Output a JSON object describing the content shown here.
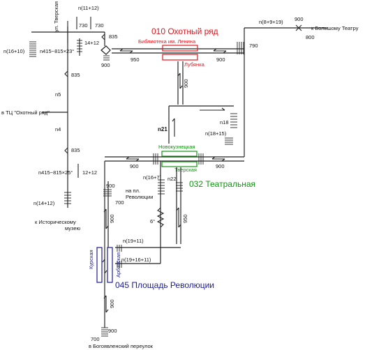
{
  "stations": {
    "okhotny_ryad": {
      "title": "010 Охотный ряд",
      "platform_top": "Библиотека им. Ленина",
      "platform_bottom": "Лубянка"
    },
    "teatralnaya": {
      "title": "032 Театральная",
      "platform_top": "Новокузнецкая",
      "platform_bottom": "Тверская"
    },
    "ploshchad": {
      "title": "045 Площадь Революции",
      "platform_left": "Курская",
      "platform_right": "Арбатская"
    }
  },
  "places": {
    "tverskaya": "ул. Тверская",
    "tc": "в ТЦ \"Охотный ряд\"",
    "museum": "к Историческому музею",
    "bolshoi": "к Большому Театру",
    "revolution_sq": "на пл. Революции",
    "bogoyavlensky": "в Богоявленский переулок"
  },
  "labels": {
    "n11_12": "n(11+12)",
    "v730a": "730",
    "v730b": "730",
    "v835a": "835",
    "n16_10": "n(16+10)",
    "n415a": "n415−815×23°",
    "v14_12": "14+12",
    "v900_ladder": "900",
    "v950_top": "950",
    "v900_top": "900",
    "n8_9_19": "n(8+9+19)",
    "v900_br": "900",
    "v800": "800",
    "v790": "790",
    "v835b": "835",
    "n5": "n5",
    "n4": "n4",
    "v835c": "835",
    "n415b": "n415−815×25°",
    "v12_12": "12+12",
    "n14_12": "n(14+12)",
    "v900_vert": "900",
    "n18": "n18",
    "n21": "n21",
    "n18_15": "n(18+15)",
    "v900_mid_left": "900",
    "v900_mid_right": "900",
    "n16_7": "n(16+7)",
    "n22": "n22",
    "v900_rev": "900",
    "v700a": "700",
    "v900_ploshchad": "900",
    "deg6": "6°",
    "v950_right": "950",
    "n19_11": "n(19+11)",
    "n19_16_11": "n(19+16+11)",
    "v900_low": "900",
    "v700b": "700",
    "v900_bottom": "900"
  },
  "colors": {
    "okhotny": "#e0161e",
    "teatralnaya": "#129212",
    "ploshchad": "#1c1c92"
  }
}
